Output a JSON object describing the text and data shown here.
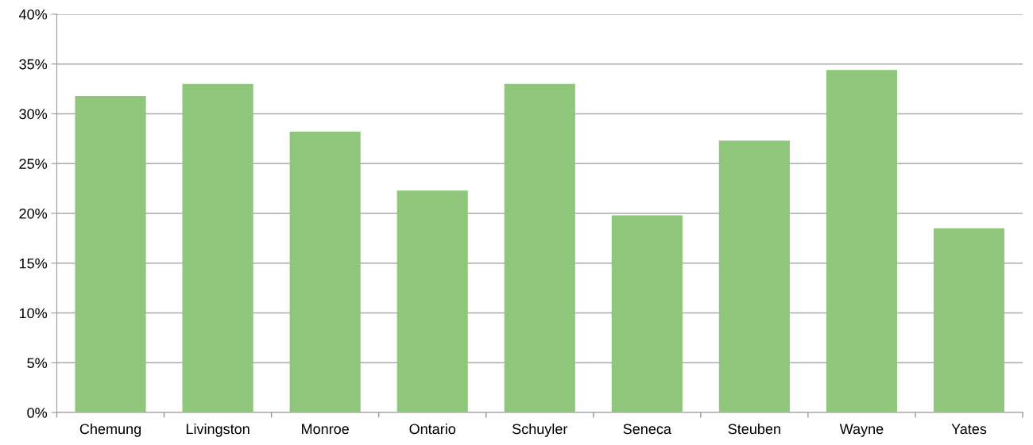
{
  "chart_data": {
    "type": "bar",
    "categories": [
      "Chemung",
      "Livingston",
      "Monroe",
      "Ontario",
      "Schuyler",
      "Seneca",
      "Steuben",
      "Wayne",
      "Yates"
    ],
    "values": [
      31.8,
      33.0,
      28.2,
      22.3,
      33.0,
      19.8,
      27.3,
      34.4,
      18.5
    ],
    "color": "#8fc67c",
    "ylim": [
      0,
      40
    ],
    "yticks": [
      {
        "value": 0,
        "label": "0%"
      },
      {
        "value": 5,
        "label": "5%"
      },
      {
        "value": 10,
        "label": "10%"
      },
      {
        "value": 15,
        "label": "15%"
      },
      {
        "value": 20,
        "label": "20%"
      },
      {
        "value": 25,
        "label": "25%"
      },
      {
        "value": 30,
        "label": "30%"
      },
      {
        "value": 35,
        "label": "35%"
      },
      {
        "value": 40,
        "label": "40%"
      }
    ],
    "grid": "y"
  }
}
